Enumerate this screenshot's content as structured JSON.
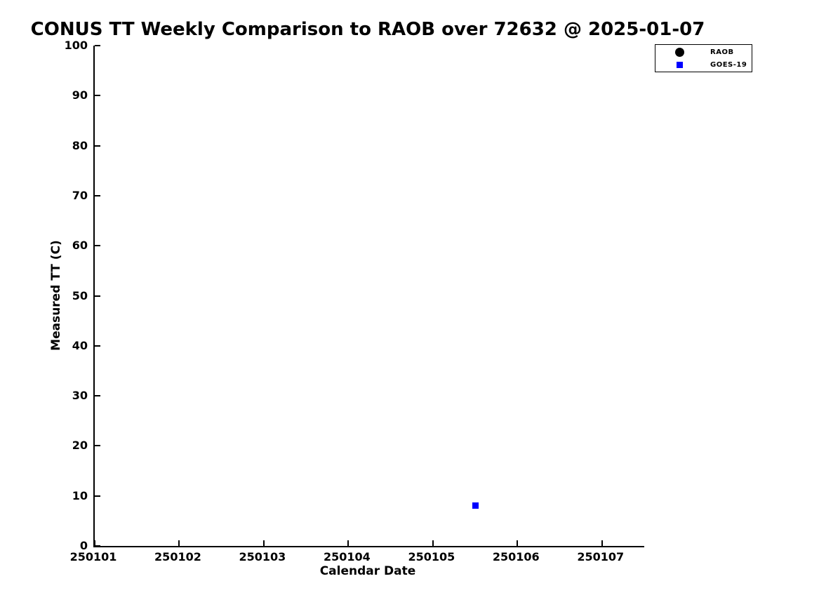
{
  "title": "CONUS TT Weekly Comparison to RAOB over 72632 @ 2025-01-07",
  "legend": {
    "items": [
      {
        "label": "RAOB",
        "marker": "circle",
        "color": "#000000"
      },
      {
        "label": "GOES-19",
        "marker": "square",
        "color": "#0000ff"
      }
    ]
  },
  "chart_data": {
    "type": "scatter",
    "title": "CONUS TT Weekly Comparison to RAOB over 72632 @ 2025-01-07",
    "xlabel": "Calendar Date",
    "ylabel": "Measured TT (C)",
    "xlim": [
      250101,
      250107.5
    ],
    "ylim": [
      0,
      100
    ],
    "xticks": [
      250101,
      250102,
      250103,
      250104,
      250105,
      250106,
      250107
    ],
    "yticks": [
      0,
      10,
      20,
      30,
      40,
      50,
      60,
      70,
      80,
      90,
      100
    ],
    "grid": false,
    "legend_position": "upper-right-outside",
    "series": [
      {
        "name": "RAOB",
        "marker": "circle",
        "color": "#000000",
        "points": []
      },
      {
        "name": "GOES-19",
        "marker": "square",
        "color": "#0000ff",
        "points": [
          {
            "x": 250105.5,
            "y": 8
          }
        ]
      }
    ]
  }
}
